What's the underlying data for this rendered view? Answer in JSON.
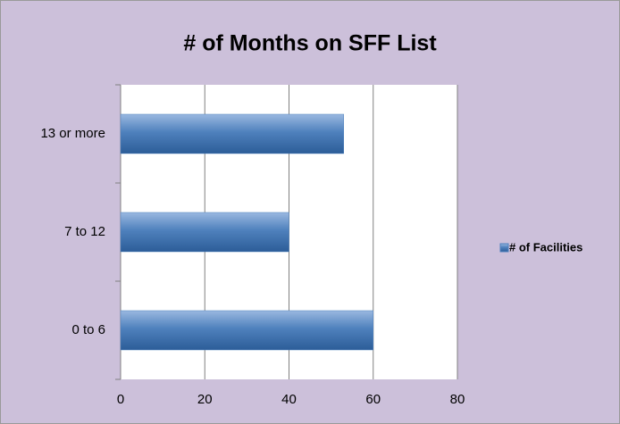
{
  "chart_data": {
    "type": "bar",
    "orientation": "horizontal",
    "title": "# of Months on SFF List",
    "categories": [
      "0 to 6",
      "7 to 12",
      "13 or more"
    ],
    "series": [
      {
        "name": "# of Facilities",
        "color": "#4f81bd",
        "values": [
          60,
          40,
          53
        ]
      }
    ],
    "xlim": [
      0,
      80
    ],
    "xticks": [
      0,
      20,
      40,
      60,
      80
    ],
    "grid": true,
    "legend": "right"
  }
}
